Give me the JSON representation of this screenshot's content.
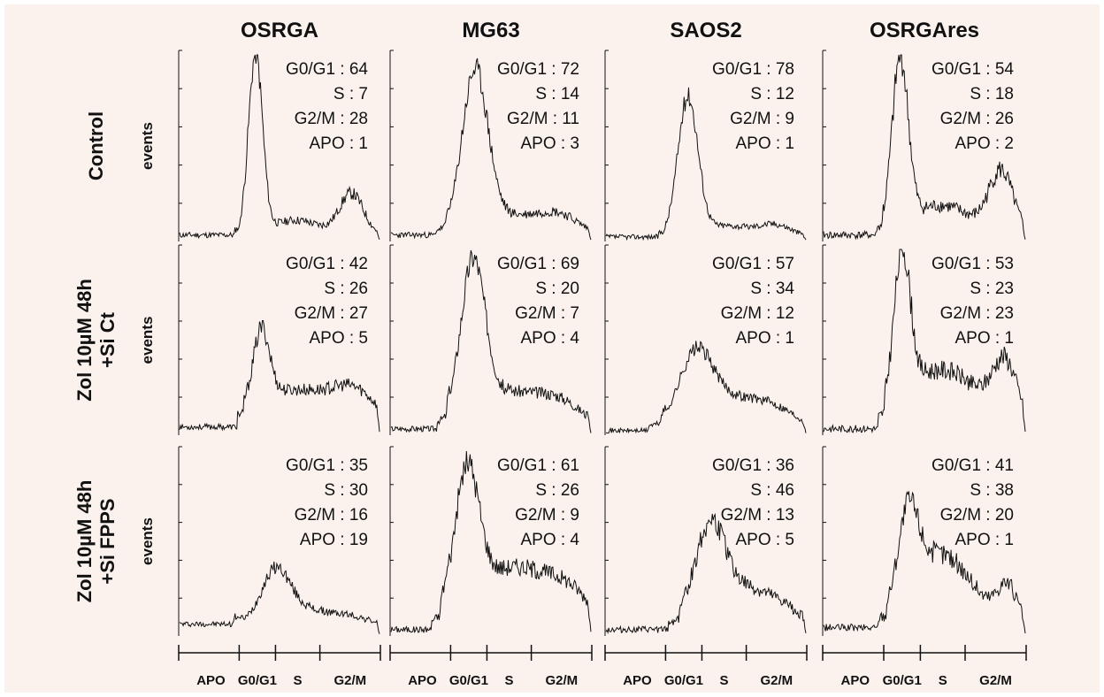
{
  "colors": {
    "background": "#fbf2ee",
    "ink": "#111111"
  },
  "chart_data": {
    "type": "line",
    "columns": [
      "OSRGA",
      "MG63",
      "SAOS2",
      "OSRGAres"
    ],
    "rows": [
      "Control",
      "Zol 10µM 48h\n+Si Ct",
      "Zol 10µM 48h\n+Si FPPS"
    ],
    "ylabel": "events",
    "x_axis_labels": [
      "APO",
      "G0/G1",
      "S",
      "G2/M"
    ],
    "panels": [
      {
        "row": 0,
        "col": 0,
        "profile": {
          "base": 0.03,
          "apo": 0.02,
          "g1pos": 0.38,
          "g1h": 0.96,
          "g1w": 0.035,
          "spos": 0.58,
          "sh": 0.08,
          "sw": 0.12,
          "g2pos": 0.86,
          "g2h": 0.22,
          "g2w": 0.06,
          "noise": 0.035,
          "seed": 11
        },
        "stats": [
          {
            "label": "G0/G1 :",
            "value": "64"
          },
          {
            "label": "S :",
            "value": "7"
          },
          {
            "label": "G2/M :",
            "value": "28"
          },
          {
            "label": "APO :",
            "value": "1"
          }
        ]
      },
      {
        "row": 0,
        "col": 1,
        "profile": {
          "base": 0.03,
          "apo": 0.03,
          "g1pos": 0.42,
          "g1h": 0.85,
          "g1w": 0.065,
          "spos": 0.6,
          "sh": 0.1,
          "sw": 0.14,
          "g2pos": 0.84,
          "g2h": 0.1,
          "g2w": 0.1,
          "noise": 0.035,
          "seed": 23
        },
        "stats": [
          {
            "label": "G0/G1 :",
            "value": "72"
          },
          {
            "label": "S :",
            "value": "14"
          },
          {
            "label": "G2/M :",
            "value": "11"
          },
          {
            "label": "APO :",
            "value": "3"
          }
        ]
      },
      {
        "row": 0,
        "col": 2,
        "profile": {
          "base": 0.02,
          "apo": 0.02,
          "g1pos": 0.41,
          "g1h": 0.74,
          "g1w": 0.05,
          "spos": 0.6,
          "sh": 0.06,
          "sw": 0.13,
          "g2pos": 0.85,
          "g2h": 0.06,
          "g2w": 0.08,
          "noise": 0.03,
          "seed": 37
        },
        "stats": [
          {
            "label": "G0/G1 :",
            "value": "78"
          },
          {
            "label": "S :",
            "value": "12"
          },
          {
            "label": "G2/M :",
            "value": "9"
          },
          {
            "label": "APO :",
            "value": "1"
          }
        ]
      },
      {
        "row": 0,
        "col": 3,
        "profile": {
          "base": 0.03,
          "apo": 0.03,
          "g1pos": 0.38,
          "g1h": 0.9,
          "g1w": 0.04,
          "spos": 0.58,
          "sh": 0.16,
          "sw": 0.15,
          "g2pos": 0.88,
          "g2h": 0.33,
          "g2w": 0.06,
          "noise": 0.045,
          "seed": 41
        },
        "stats": [
          {
            "label": "G0/G1 :",
            "value": "54"
          },
          {
            "label": "S :",
            "value": "18"
          },
          {
            "label": "G2/M :",
            "value": "26"
          },
          {
            "label": "APO :",
            "value": "2"
          }
        ]
      },
      {
        "row": 1,
        "col": 0,
        "profile": {
          "base": 0.04,
          "apo": 0.04,
          "g1pos": 0.41,
          "g1h": 0.38,
          "g1w": 0.04,
          "spos": 0.58,
          "sh": 0.2,
          "sw": 0.25,
          "g2pos": 0.88,
          "g2h": 0.12,
          "g2w": 0.1,
          "noise": 0.035,
          "seed": 53
        },
        "stats": [
          {
            "label": "G0/G1 :",
            "value": "42"
          },
          {
            "label": "S :",
            "value": "26"
          },
          {
            "label": "G2/M :",
            "value": "27"
          },
          {
            "label": "APO :",
            "value": "5"
          }
        ]
      },
      {
        "row": 1,
        "col": 1,
        "profile": {
          "base": 0.03,
          "apo": 0.03,
          "g1pos": 0.41,
          "g1h": 0.8,
          "g1w": 0.06,
          "spos": 0.6,
          "sh": 0.2,
          "sw": 0.2,
          "g2pos": 0.86,
          "g2h": 0.08,
          "g2w": 0.1,
          "noise": 0.035,
          "seed": 67
        },
        "stats": [
          {
            "label": "G0/G1 :",
            "value": "69"
          },
          {
            "label": "S :",
            "value": "20"
          },
          {
            "label": "G2/M :",
            "value": "7"
          },
          {
            "label": "APO :",
            "value": "4"
          }
        ]
      },
      {
        "row": 1,
        "col": 2,
        "profile": {
          "base": 0.02,
          "apo": 0.02,
          "g1pos": 0.45,
          "g1h": 0.32,
          "g1w": 0.08,
          "spos": 0.62,
          "sh": 0.18,
          "sw": 0.2,
          "g2pos": 0.86,
          "g2h": 0.05,
          "g2w": 0.1,
          "noise": 0.03,
          "seed": 71
        },
        "stats": [
          {
            "label": "G0/G1 :",
            "value": "57"
          },
          {
            "label": "S :",
            "value": "34"
          },
          {
            "label": "G2/M :",
            "value": "12"
          },
          {
            "label": "APO :",
            "value": "1"
          }
        ]
      },
      {
        "row": 1,
        "col": 3,
        "profile": {
          "base": 0.03,
          "apo": 0.03,
          "g1pos": 0.39,
          "g1h": 0.78,
          "g1w": 0.04,
          "spos": 0.58,
          "sh": 0.32,
          "sw": 0.2,
          "g2pos": 0.9,
          "g2h": 0.3,
          "g2w": 0.06,
          "noise": 0.045,
          "seed": 83
        },
        "stats": [
          {
            "label": "G0/G1 :",
            "value": "53"
          },
          {
            "label": "S :",
            "value": "23"
          },
          {
            "label": "G2/M :",
            "value": "23"
          },
          {
            "label": "APO :",
            "value": "1"
          }
        ]
      },
      {
        "row": 2,
        "col": 0,
        "profile": {
          "base": 0.06,
          "apo": 0.03,
          "g1pos": 0.48,
          "g1h": 0.26,
          "g1w": 0.07,
          "spos": 0.62,
          "sh": 0.08,
          "sw": 0.14,
          "g2pos": 0.86,
          "g2h": 0.03,
          "g2w": 0.08,
          "noise": 0.03,
          "seed": 97
        },
        "stats": [
          {
            "label": "G0/G1 :",
            "value": "35"
          },
          {
            "label": "S :",
            "value": "30"
          },
          {
            "label": "G2/M :",
            "value": "16"
          },
          {
            "label": "APO :",
            "value": "19"
          }
        ]
      },
      {
        "row": 2,
        "col": 1,
        "profile": {
          "base": 0.03,
          "apo": 0.03,
          "g1pos": 0.38,
          "g1h": 0.72,
          "g1w": 0.06,
          "spos": 0.62,
          "sh": 0.34,
          "sw": 0.22,
          "g2pos": 0.9,
          "g2h": 0.1,
          "g2w": 0.1,
          "noise": 0.04,
          "seed": 101
        },
        "stats": [
          {
            "label": "G0/G1 :",
            "value": "61"
          },
          {
            "label": "S :",
            "value": "26"
          },
          {
            "label": "G2/M :",
            "value": "9"
          },
          {
            "label": "APO :",
            "value": "4"
          }
        ]
      },
      {
        "row": 2,
        "col": 2,
        "profile": {
          "base": 0.03,
          "apo": 0.02,
          "g1pos": 0.52,
          "g1h": 0.4,
          "g1w": 0.07,
          "spos": 0.65,
          "sh": 0.24,
          "sw": 0.2,
          "g2pos": 0.9,
          "g2h": 0.03,
          "g2w": 0.08,
          "noise": 0.04,
          "seed": 113
        },
        "stats": [
          {
            "label": "G0/G1 :",
            "value": "36"
          },
          {
            "label": "S :",
            "value": "46"
          },
          {
            "label": "G2/M :",
            "value": "13"
          },
          {
            "label": "APO :",
            "value": "5"
          }
        ]
      },
      {
        "row": 2,
        "col": 3,
        "profile": {
          "base": 0.04,
          "apo": 0.03,
          "g1pos": 0.42,
          "g1h": 0.44,
          "g1w": 0.05,
          "spos": 0.58,
          "sh": 0.4,
          "sw": 0.16,
          "g2pos": 0.91,
          "g2h": 0.2,
          "g2w": 0.05,
          "noise": 0.045,
          "seed": 127
        },
        "stats": [
          {
            "label": "G0/G1 :",
            "value": "41"
          },
          {
            "label": "S :",
            "value": "38"
          },
          {
            "label": "G2/M :",
            "value": "20"
          },
          {
            "label": "APO :",
            "value": "1"
          }
        ]
      }
    ]
  }
}
